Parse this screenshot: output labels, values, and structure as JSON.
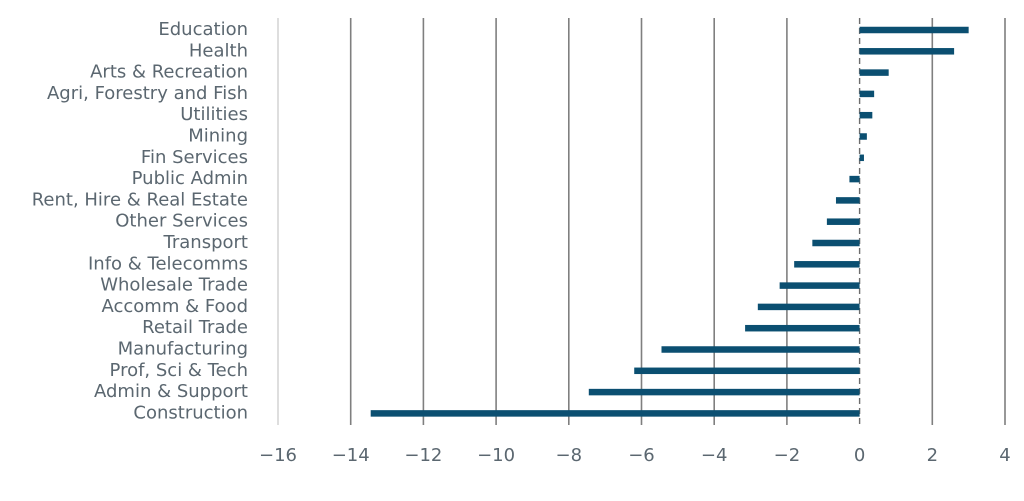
{
  "chart_data": {
    "type": "bar",
    "orientation": "horizontal",
    "title": "",
    "xlabel": "",
    "ylabel": "",
    "categories": [
      "Education",
      "Health",
      "Arts & Recreation",
      "Agri, Forestry and Fish",
      "Utilities",
      "Mining",
      "Fin Services",
      "Public Admin",
      "Rent, Hire & Real Estate",
      "Other Services",
      "Transport",
      "Info & Telecomms",
      "Wholesale Trade",
      "Accomm & Food",
      "Retail Trade",
      "Manufacturing",
      "Prof, Sci & Tech",
      "Admin & Support",
      "Construction"
    ],
    "values": [
      3.0,
      2.6,
      0.8,
      0.4,
      0.35,
      0.2,
      0.12,
      -0.28,
      -0.65,
      -0.9,
      -1.3,
      -1.8,
      -2.2,
      -2.8,
      -3.15,
      -5.45,
      -6.2,
      -7.45,
      -13.45
    ],
    "xlim": [
      -16,
      4
    ],
    "xticks": [
      "−16",
      "−14",
      "−12",
      "−10",
      "−8",
      "−6",
      "−4",
      "−2",
      "0",
      "2",
      "4"
    ],
    "bar_color": "#0b4f71",
    "grid": true
  }
}
